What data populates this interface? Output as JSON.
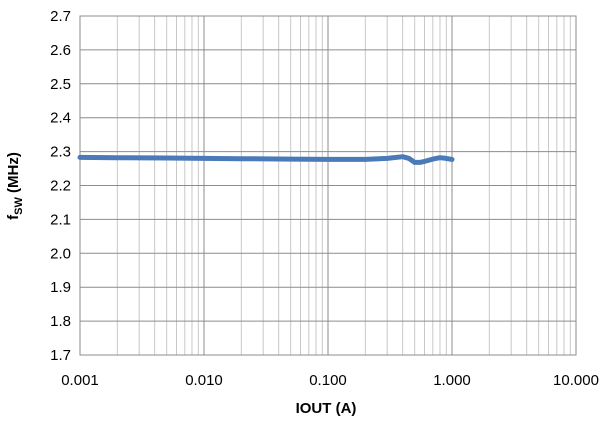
{
  "chart_data": {
    "type": "line",
    "xlabel": "IOUT (A)",
    "ylabel": {
      "main": "f",
      "sub": "SW",
      "rest": " (MHz)"
    },
    "x_scale": "log",
    "xlim": [
      0.001,
      10
    ],
    "ylim": [
      1.7,
      2.7
    ],
    "grid": true,
    "x_ticks": [
      {
        "value": 0.001,
        "label": "0.001"
      },
      {
        "value": 0.01,
        "label": "0.010"
      },
      {
        "value": 0.1,
        "label": "0.100"
      },
      {
        "value": 1,
        "label": "1.000"
      },
      {
        "value": 10,
        "label": "10.000"
      }
    ],
    "y_ticks": [
      {
        "value": 1.7,
        "label": "1.7"
      },
      {
        "value": 1.8,
        "label": "1.8"
      },
      {
        "value": 1.9,
        "label": "1.9"
      },
      {
        "value": 2.0,
        "label": "2.0"
      },
      {
        "value": 2.1,
        "label": "2.1"
      },
      {
        "value": 2.2,
        "label": "2.2"
      },
      {
        "value": 2.3,
        "label": "2.3"
      },
      {
        "value": 2.4,
        "label": "2.4"
      },
      {
        "value": 2.5,
        "label": "2.5"
      },
      {
        "value": 2.6,
        "label": "2.6"
      },
      {
        "value": 2.7,
        "label": "2.7"
      }
    ],
    "series": [
      {
        "color": "#4a7ab8",
        "x": [
          0.001,
          0.002,
          0.005,
          0.01,
          0.02,
          0.05,
          0.1,
          0.2,
          0.3,
          0.4,
          0.45,
          0.5,
          0.55,
          0.6,
          0.7,
          0.8,
          0.9,
          1.0
        ],
        "y": [
          2.283,
          2.282,
          2.281,
          2.28,
          2.279,
          2.278,
          2.277,
          2.277,
          2.28,
          2.285,
          2.28,
          2.268,
          2.268,
          2.271,
          2.278,
          2.282,
          2.28,
          2.277
        ]
      }
    ]
  }
}
